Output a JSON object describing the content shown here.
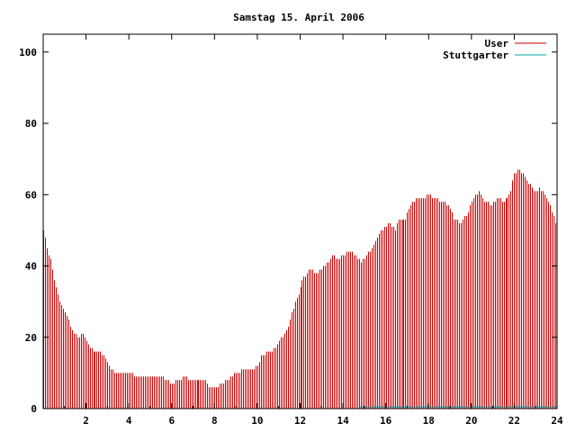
{
  "chart_data": {
    "type": "bar",
    "title": "Samstag 15. April 2006",
    "xlabel": "",
    "ylabel": "",
    "xlim": [
      0,
      24
    ],
    "ylim": [
      0,
      105
    ],
    "x_ticks": [
      2,
      4,
      6,
      8,
      10,
      12,
      14,
      16,
      18,
      20,
      22,
      24
    ],
    "y_ticks": [
      0,
      20,
      40,
      60,
      80,
      100
    ],
    "grid": false,
    "legend_position": "top-right",
    "anchors": [
      [
        0.0,
        50
      ],
      [
        0.1,
        47
      ],
      [
        0.2,
        44
      ],
      [
        0.35,
        42
      ],
      [
        0.5,
        36
      ],
      [
        0.6,
        33
      ],
      [
        0.75,
        30
      ],
      [
        0.9,
        28
      ],
      [
        1.0,
        27
      ],
      [
        1.2,
        24
      ],
      [
        1.4,
        21
      ],
      [
        1.6,
        20
      ],
      [
        1.8,
        21
      ],
      [
        2.0,
        19
      ],
      [
        2.2,
        17
      ],
      [
        2.4,
        16
      ],
      [
        2.6,
        16
      ],
      [
        2.8,
        15
      ],
      [
        3.0,
        13
      ],
      [
        3.2,
        11
      ],
      [
        3.4,
        10
      ],
      [
        4.0,
        10
      ],
      [
        4.4,
        9
      ],
      [
        5.0,
        9
      ],
      [
        5.5,
        9
      ],
      [
        5.8,
        8
      ],
      [
        6.0,
        7
      ],
      [
        6.3,
        8
      ],
      [
        6.6,
        9
      ],
      [
        6.8,
        8
      ],
      [
        7.2,
        8
      ],
      [
        7.6,
        8
      ],
      [
        7.8,
        6
      ],
      [
        8.1,
        6
      ],
      [
        8.3,
        7
      ],
      [
        8.6,
        8
      ],
      [
        9.0,
        10
      ],
      [
        9.4,
        11
      ],
      [
        9.8,
        11
      ],
      [
        10.0,
        12
      ],
      [
        10.2,
        15
      ],
      [
        10.5,
        16
      ],
      [
        10.7,
        16
      ],
      [
        11.0,
        19
      ],
      [
        11.3,
        21
      ],
      [
        11.6,
        27
      ],
      [
        11.9,
        32
      ],
      [
        12.1,
        36
      ],
      [
        12.3,
        38
      ],
      [
        12.5,
        39
      ],
      [
        12.7,
        38
      ],
      [
        13.0,
        39
      ],
      [
        13.3,
        41
      ],
      [
        13.5,
        43
      ],
      [
        13.8,
        42
      ],
      [
        14.0,
        43
      ],
      [
        14.3,
        44
      ],
      [
        14.6,
        43
      ],
      [
        14.8,
        41
      ],
      [
        15.0,
        42
      ],
      [
        15.3,
        45
      ],
      [
        15.6,
        48
      ],
      [
        15.9,
        51
      ],
      [
        16.2,
        52
      ],
      [
        16.4,
        50
      ],
      [
        16.6,
        53
      ],
      [
        16.9,
        53
      ],
      [
        17.1,
        56
      ],
      [
        17.4,
        59
      ],
      [
        17.7,
        59
      ],
      [
        18.0,
        60
      ],
      [
        18.3,
        59
      ],
      [
        18.6,
        58
      ],
      [
        18.9,
        57
      ],
      [
        19.2,
        53
      ],
      [
        19.5,
        52
      ],
      [
        19.8,
        55
      ],
      [
        20.0,
        58
      ],
      [
        20.3,
        61
      ],
      [
        20.6,
        58
      ],
      [
        20.9,
        57
      ],
      [
        21.2,
        59
      ],
      [
        21.5,
        58
      ],
      [
        21.8,
        60
      ],
      [
        22.0,
        66
      ],
      [
        22.2,
        67
      ],
      [
        22.4,
        66
      ],
      [
        22.6,
        64
      ],
      [
        22.8,
        62
      ],
      [
        23.0,
        61
      ],
      [
        23.2,
        62
      ],
      [
        23.4,
        60
      ],
      [
        23.6,
        58
      ],
      [
        23.8,
        54
      ],
      [
        24.0,
        51
      ]
    ],
    "series": [
      {
        "name": "User",
        "color": "#cc0000"
      },
      {
        "name": "Stuttgarter",
        "color": "#00a0a0",
        "x_start": 14.8,
        "x_end": 24,
        "value": 0.5
      }
    ]
  }
}
